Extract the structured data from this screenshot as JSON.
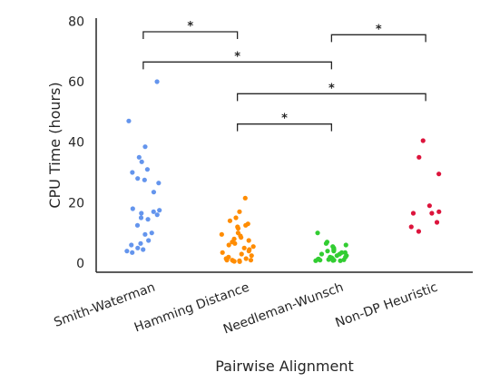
{
  "chart_data": {
    "type": "scatter",
    "xlabel": "Pairwise Alignment",
    "ylabel": "CPU Time (hours)",
    "ylim": [
      -3,
      81
    ],
    "yticks": [
      0,
      20,
      40,
      60,
      80
    ],
    "grid": false,
    "categories": [
      "Smith-Waterman",
      "Hamming Distance",
      "Needleman-Wunsch",
      "Non-DP Heuristic"
    ],
    "series": [
      {
        "category": "Smith-Waterman",
        "color": "#6495ed",
        "values": [
          60,
          47,
          38.5,
          35,
          33.5,
          31,
          30,
          28,
          27.5,
          26.5,
          23.5,
          18,
          17.5,
          17,
          16.5,
          16,
          15,
          14.5,
          12.5,
          10,
          9.5,
          7.5,
          6.5,
          6,
          5,
          4.5,
          4,
          3.5
        ]
      },
      {
        "category": "Hamming Distance",
        "color": "#ff8c00",
        "values": [
          21.5,
          17,
          15,
          14,
          13,
          12.5,
          12,
          11.5,
          10,
          9.5,
          9,
          8.5,
          8,
          7.5,
          7,
          6.5,
          6,
          5.5,
          5,
          4.5,
          4,
          3.5,
          3,
          2.5,
          2,
          1.5,
          1.5,
          1,
          1,
          1,
          0.8,
          0.8,
          0.6,
          0.5
        ]
      },
      {
        "category": "Needleman-Wunsch",
        "color": "#32cd32",
        "values": [
          10,
          7,
          6.5,
          6,
          5.5,
          5,
          4.5,
          4.5,
          4,
          4,
          3.5,
          3.5,
          3,
          3,
          2.5,
          2.5,
          2,
          2,
          1.8,
          1.6,
          1.5,
          1.4,
          1.3,
          1.2,
          1.1,
          1,
          1,
          0.9,
          0.8,
          0.8
        ]
      },
      {
        "category": "Non-DP Heuristic",
        "color": "#dc143c",
        "values": [
          40.5,
          35,
          29.5,
          19,
          17,
          16.5,
          16.5,
          13.5,
          12,
          10.5
        ]
      }
    ],
    "significance": [
      {
        "from": 0,
        "to": 1,
        "y": 76.5,
        "label": "*"
      },
      {
        "from": 2,
        "to": 3,
        "y": 75.5,
        "label": "*"
      },
      {
        "from": 0,
        "to": 2,
        "y": 66.5,
        "label": "*"
      },
      {
        "from": 1,
        "to": 3,
        "y": 56,
        "label": "*"
      },
      {
        "from": 1,
        "to": 2,
        "y": 46,
        "label": "*"
      }
    ]
  }
}
